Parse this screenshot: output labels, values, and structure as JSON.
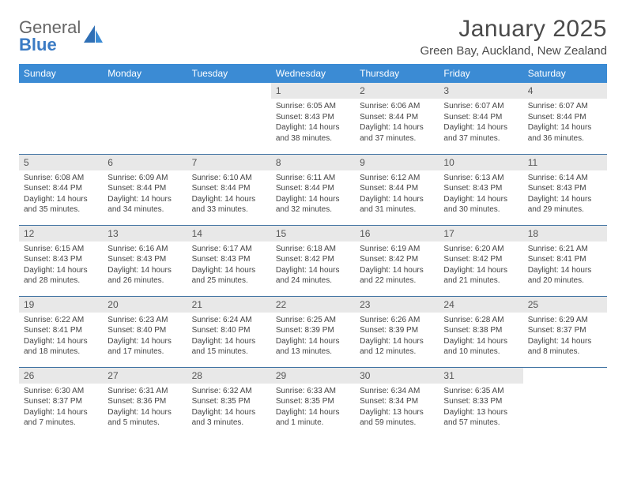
{
  "brand": {
    "part1": "General",
    "part2": "Blue"
  },
  "title": "January 2025",
  "location": "Green Bay, Auckland, New Zealand",
  "colors": {
    "header_bg": "#3b8bd4",
    "header_text": "#ffffff",
    "daynum_bg": "#e8e8e8",
    "row_border": "#3b6fa0",
    "brand_blue": "#3b7bc4"
  },
  "dayNames": [
    "Sunday",
    "Monday",
    "Tuesday",
    "Wednesday",
    "Thursday",
    "Friday",
    "Saturday"
  ],
  "startWeekday": 3,
  "daysInMonth": 31,
  "days": {
    "1": {
      "sunrise": "6:05 AM",
      "sunset": "8:43 PM",
      "daylight": "14 hours and 38 minutes."
    },
    "2": {
      "sunrise": "6:06 AM",
      "sunset": "8:44 PM",
      "daylight": "14 hours and 37 minutes."
    },
    "3": {
      "sunrise": "6:07 AM",
      "sunset": "8:44 PM",
      "daylight": "14 hours and 37 minutes."
    },
    "4": {
      "sunrise": "6:07 AM",
      "sunset": "8:44 PM",
      "daylight": "14 hours and 36 minutes."
    },
    "5": {
      "sunrise": "6:08 AM",
      "sunset": "8:44 PM",
      "daylight": "14 hours and 35 minutes."
    },
    "6": {
      "sunrise": "6:09 AM",
      "sunset": "8:44 PM",
      "daylight": "14 hours and 34 minutes."
    },
    "7": {
      "sunrise": "6:10 AM",
      "sunset": "8:44 PM",
      "daylight": "14 hours and 33 minutes."
    },
    "8": {
      "sunrise": "6:11 AM",
      "sunset": "8:44 PM",
      "daylight": "14 hours and 32 minutes."
    },
    "9": {
      "sunrise": "6:12 AM",
      "sunset": "8:44 PM",
      "daylight": "14 hours and 31 minutes."
    },
    "10": {
      "sunrise": "6:13 AM",
      "sunset": "8:43 PM",
      "daylight": "14 hours and 30 minutes."
    },
    "11": {
      "sunrise": "6:14 AM",
      "sunset": "8:43 PM",
      "daylight": "14 hours and 29 minutes."
    },
    "12": {
      "sunrise": "6:15 AM",
      "sunset": "8:43 PM",
      "daylight": "14 hours and 28 minutes."
    },
    "13": {
      "sunrise": "6:16 AM",
      "sunset": "8:43 PM",
      "daylight": "14 hours and 26 minutes."
    },
    "14": {
      "sunrise": "6:17 AM",
      "sunset": "8:43 PM",
      "daylight": "14 hours and 25 minutes."
    },
    "15": {
      "sunrise": "6:18 AM",
      "sunset": "8:42 PM",
      "daylight": "14 hours and 24 minutes."
    },
    "16": {
      "sunrise": "6:19 AM",
      "sunset": "8:42 PM",
      "daylight": "14 hours and 22 minutes."
    },
    "17": {
      "sunrise": "6:20 AM",
      "sunset": "8:42 PM",
      "daylight": "14 hours and 21 minutes."
    },
    "18": {
      "sunrise": "6:21 AM",
      "sunset": "8:41 PM",
      "daylight": "14 hours and 20 minutes."
    },
    "19": {
      "sunrise": "6:22 AM",
      "sunset": "8:41 PM",
      "daylight": "14 hours and 18 minutes."
    },
    "20": {
      "sunrise": "6:23 AM",
      "sunset": "8:40 PM",
      "daylight": "14 hours and 17 minutes."
    },
    "21": {
      "sunrise": "6:24 AM",
      "sunset": "8:40 PM",
      "daylight": "14 hours and 15 minutes."
    },
    "22": {
      "sunrise": "6:25 AM",
      "sunset": "8:39 PM",
      "daylight": "14 hours and 13 minutes."
    },
    "23": {
      "sunrise": "6:26 AM",
      "sunset": "8:39 PM",
      "daylight": "14 hours and 12 minutes."
    },
    "24": {
      "sunrise": "6:28 AM",
      "sunset": "8:38 PM",
      "daylight": "14 hours and 10 minutes."
    },
    "25": {
      "sunrise": "6:29 AM",
      "sunset": "8:37 PM",
      "daylight": "14 hours and 8 minutes."
    },
    "26": {
      "sunrise": "6:30 AM",
      "sunset": "8:37 PM",
      "daylight": "14 hours and 7 minutes."
    },
    "27": {
      "sunrise": "6:31 AM",
      "sunset": "8:36 PM",
      "daylight": "14 hours and 5 minutes."
    },
    "28": {
      "sunrise": "6:32 AM",
      "sunset": "8:35 PM",
      "daylight": "14 hours and 3 minutes."
    },
    "29": {
      "sunrise": "6:33 AM",
      "sunset": "8:35 PM",
      "daylight": "14 hours and 1 minute."
    },
    "30": {
      "sunrise": "6:34 AM",
      "sunset": "8:34 PM",
      "daylight": "13 hours and 59 minutes."
    },
    "31": {
      "sunrise": "6:35 AM",
      "sunset": "8:33 PM",
      "daylight": "13 hours and 57 minutes."
    }
  },
  "labels": {
    "sunrise": "Sunrise:",
    "sunset": "Sunset:",
    "daylight": "Daylight:"
  }
}
